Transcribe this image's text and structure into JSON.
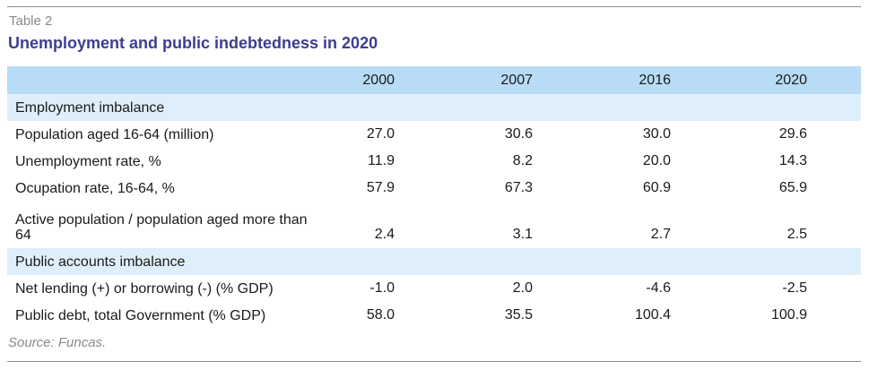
{
  "table_label": "Table 2",
  "title": "Unemployment and public indebtedness in 2020",
  "columns": [
    "2000",
    "2007",
    "2016",
    "2020"
  ],
  "sections": [
    {
      "name": "Employment imbalance",
      "rows": [
        {
          "label": "Population aged 16-64 (million)",
          "values": [
            "27.0",
            "30.6",
            "30.0",
            "29.6"
          ]
        },
        {
          "label": "Unemployment rate, %",
          "values": [
            "11.9",
            "8.2",
            "20.0",
            "14.3"
          ]
        },
        {
          "label": "Ocupation rate, 16-64, %",
          "values": [
            "57.9",
            "67.3",
            "60.9",
            "65.9"
          ]
        },
        {
          "label": "Active population / population aged more than 64",
          "values": [
            "2.4",
            "3.1",
            "2.7",
            "2.5"
          ]
        }
      ]
    },
    {
      "name": "Public accounts imbalance",
      "rows": [
        {
          "label": "Net lending (+) or borrowing (-) (% GDP)",
          "values": [
            "-1.0",
            "2.0",
            "-4.6",
            "-2.5"
          ]
        },
        {
          "label": "Public debt, total Government (% GDP)",
          "values": [
            "58.0",
            "35.5",
            "100.4",
            "100.9"
          ]
        }
      ]
    }
  ],
  "source": "Source: Funcas.",
  "colors": {
    "title": "#3d3d8f",
    "header_bg": "#b8dcf6",
    "section_bg": "#deeefb",
    "muted_text": "#8a8a8a"
  }
}
